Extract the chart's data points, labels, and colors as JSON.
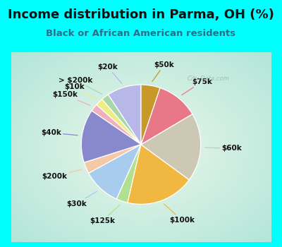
{
  "title": "Income distribution in Parma, OH (%)",
  "subtitle": "Black or African American residents",
  "bg_color": "#00FFFF",
  "slices": [
    {
      "label": "$20k",
      "value": 9,
      "color": "#b8b8e8"
    },
    {
      "label": "> $200k",
      "value": 2,
      "color": "#a8d8a8"
    },
    {
      "label": "$10k",
      "value": 2,
      "color": "#eeee80"
    },
    {
      "label": "$150k",
      "value": 2,
      "color": "#f0b0bc"
    },
    {
      "label": "$40k",
      "value": 14,
      "color": "#8888cc"
    },
    {
      "label": "$200k",
      "value": 3,
      "color": "#f5c8a8"
    },
    {
      "label": "$30k",
      "value": 10,
      "color": "#a8ccee"
    },
    {
      "label": "$125k",
      "value": 3,
      "color": "#b0e090"
    },
    {
      "label": "$100k",
      "value": 18,
      "color": "#f0b840"
    },
    {
      "label": "$60k",
      "value": 18,
      "color": "#ccc8b4"
    },
    {
      "label": "$75k",
      "value": 11,
      "color": "#e87888"
    },
    {
      "label": "$50k",
      "value": 5,
      "color": "#c89828"
    }
  ],
  "watermark": "City-Data.com",
  "lfs": 7.5,
  "tfs": 13,
  "sfs": 9.5
}
